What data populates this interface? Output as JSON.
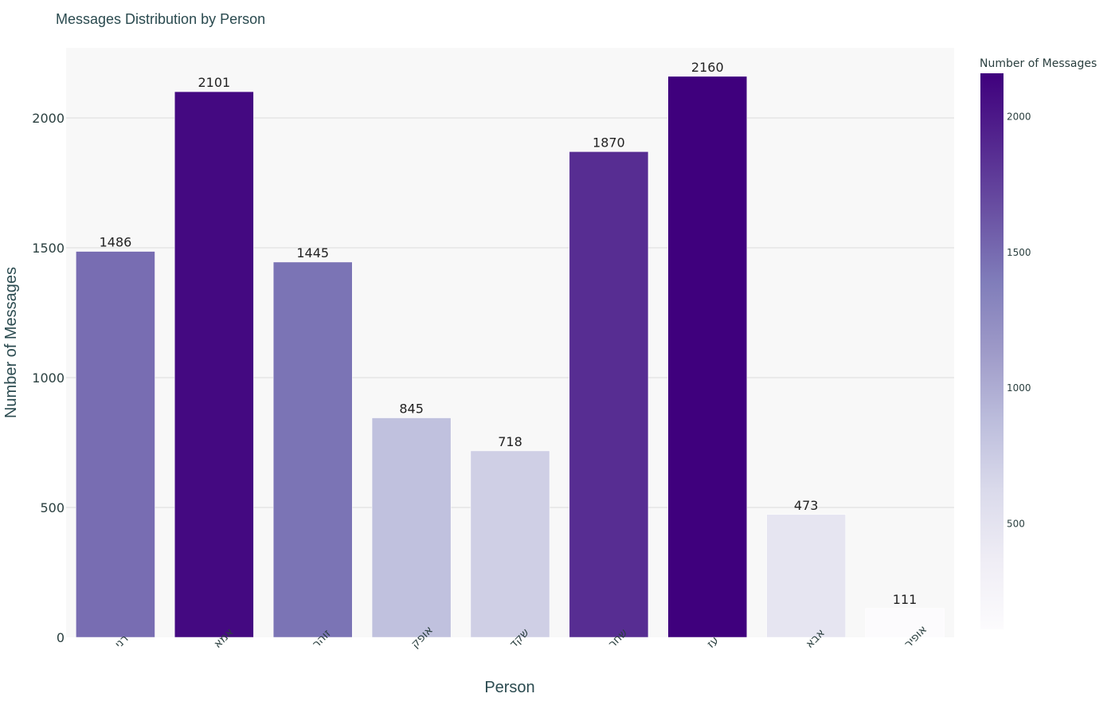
{
  "chart_data": {
    "type": "bar",
    "title": "Messages Distribution by Person",
    "xlabel": "Person",
    "ylabel": "Number of Messages",
    "categories": [
      "רני",
      "אמא",
      "זוהר",
      "אופק",
      "שקד",
      "שחר",
      "עז",
      "אבא",
      "אופיר"
    ],
    "values": [
      1486,
      2101,
      1445,
      845,
      718,
      1870,
      2160,
      473,
      111
    ],
    "ylim": [
      0,
      2270
    ],
    "yticks": [
      0,
      500,
      1000,
      1500,
      2000
    ],
    "grid": true,
    "colorbar": {
      "title": "Number of Messages",
      "range": [
        111,
        2160
      ],
      "ticks": [
        500,
        1000,
        1500,
        2000
      ],
      "colorscale": "Purples"
    }
  }
}
